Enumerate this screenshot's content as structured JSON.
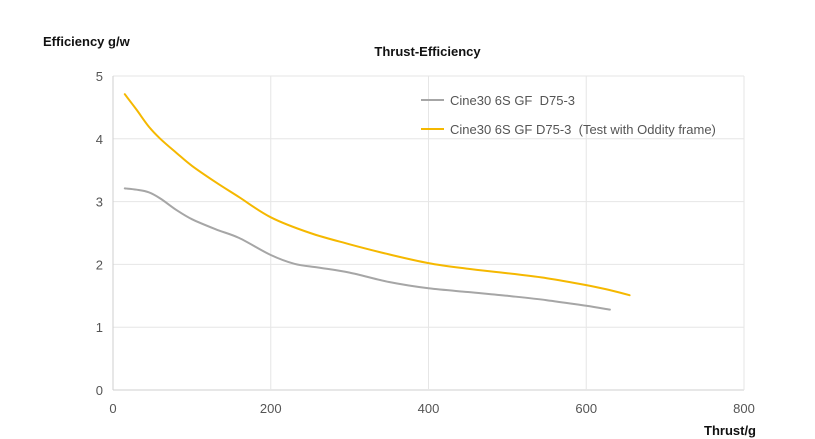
{
  "chart_data": {
    "type": "line",
    "title": "Thrust-Efficiency",
    "xlabel": "Thrust/g",
    "ylabel": "Efficiency g/w",
    "xlim": [
      0,
      800
    ],
    "ylim": [
      0,
      5
    ],
    "xticks": [
      0,
      200,
      400,
      600,
      800
    ],
    "yticks": [
      0,
      1,
      2,
      3,
      4,
      5
    ],
    "grid": true,
    "legend_position": "top-right",
    "series": [
      {
        "name": "Cine30 6S GF  D75-3",
        "color": "#a6a6a6",
        "points": [
          [
            15,
            3.21
          ],
          [
            30,
            3.19
          ],
          [
            45,
            3.15
          ],
          [
            60,
            3.05
          ],
          [
            80,
            2.87
          ],
          [
            100,
            2.72
          ],
          [
            130,
            2.56
          ],
          [
            160,
            2.42
          ],
          [
            200,
            2.15
          ],
          [
            230,
            2.01
          ],
          [
            260,
            1.95
          ],
          [
            300,
            1.87
          ],
          [
            350,
            1.72
          ],
          [
            400,
            1.62
          ],
          [
            450,
            1.56
          ],
          [
            500,
            1.5
          ],
          [
            550,
            1.43
          ],
          [
            600,
            1.34
          ],
          [
            630,
            1.28
          ]
        ]
      },
      {
        "name": "Cine30 6S GF D75-3  (Test with Oddity frame)",
        "color": "#f5b800",
        "points": [
          [
            15,
            4.71
          ],
          [
            30,
            4.46
          ],
          [
            45,
            4.2
          ],
          [
            60,
            4.0
          ],
          [
            80,
            3.78
          ],
          [
            100,
            3.57
          ],
          [
            130,
            3.31
          ],
          [
            160,
            3.07
          ],
          [
            200,
            2.75
          ],
          [
            250,
            2.5
          ],
          [
            300,
            2.32
          ],
          [
            350,
            2.16
          ],
          [
            400,
            2.02
          ],
          [
            450,
            1.93
          ],
          [
            500,
            1.86
          ],
          [
            550,
            1.78
          ],
          [
            600,
            1.67
          ],
          [
            630,
            1.59
          ],
          [
            655,
            1.51
          ]
        ]
      }
    ]
  }
}
